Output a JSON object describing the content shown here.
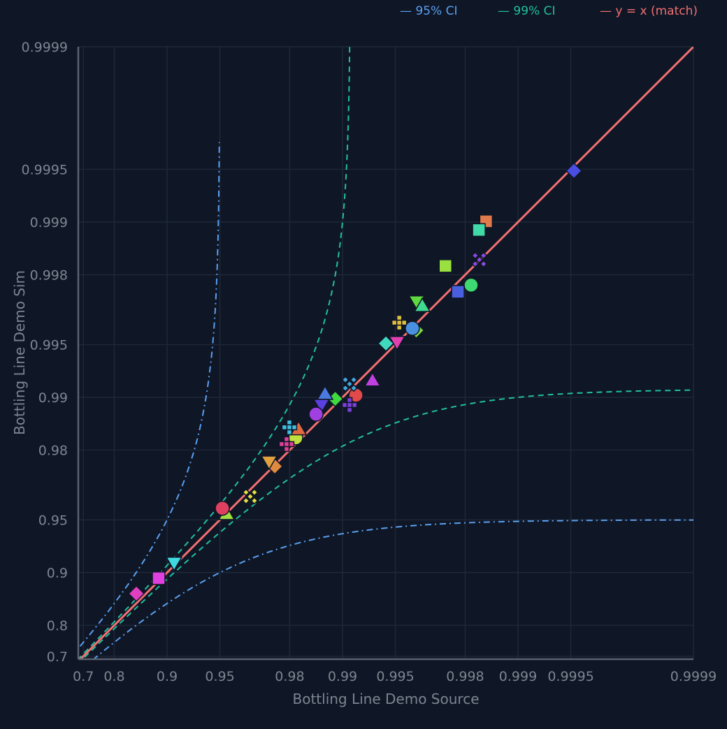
{
  "chart_data": {
    "type": "scatter",
    "scale": "probability (-log10(1-p))",
    "xlabel": "Bottling Line Demo Source",
    "ylabel": "Bottling Line Demo Sim",
    "xlim": [
      0.69,
      0.9999
    ],
    "ylim": [
      0.69,
      0.9999
    ],
    "grid": true,
    "legend_position": "top-right",
    "ticks": [
      "0.7",
      "0.8",
      "0.9",
      "0.95",
      "0.98",
      "0.99",
      "0.995",
      "0.998",
      "0.999",
      "0.9995",
      "0.9999"
    ],
    "legend": [
      {
        "label": "95% CI",
        "color": "#5aa0f0",
        "style": "dash-dot"
      },
      {
        "label": "99% CI",
        "color": "#20c0a0",
        "style": "dashed"
      },
      {
        "label": "y = x (match)",
        "color": "#f07070",
        "style": "solid"
      }
    ],
    "ci_bands": [
      {
        "name": "95% CI",
        "offset": 0.05,
        "color": "#5aa0f0"
      },
      {
        "name": "99% CI",
        "offset": 0.009,
        "color": "#20c0a0"
      }
    ],
    "points": [
      {
        "x": 0.99952,
        "y": 0.99949,
        "shape": "diamond",
        "color": "#4a4ee0"
      },
      {
        "x": 0.99848,
        "y": 0.99901,
        "shape": "square",
        "color": "#e07a4a"
      },
      {
        "x": 0.99833,
        "y": 0.99889,
        "shape": "square",
        "color": "#40d9a8"
      },
      {
        "x": 0.99834,
        "y": 0.99836,
        "shape": "xdiamond",
        "color": "#8a4ae0"
      },
      {
        "x": 0.99741,
        "y": 0.99822,
        "shape": "square",
        "color": "#9ae040"
      },
      {
        "x": 0.99815,
        "y": 0.99771,
        "shape": "circle",
        "color": "#3ed970"
      },
      {
        "x": 0.9978,
        "y": 0.9975,
        "shape": "square",
        "color": "#4a5ee0"
      },
      {
        "x": 0.99622,
        "y": 0.99716,
        "shape": "triangle-down",
        "color": "#5ed940"
      },
      {
        "x": 0.99649,
        "y": 0.99699,
        "shape": "triangle-up",
        "color": "#40d990"
      },
      {
        "x": 0.99525,
        "y": 0.99625,
        "shape": "cross",
        "color": "#e0c040"
      },
      {
        "x": 0.9962,
        "y": 0.99585,
        "shape": "diamond",
        "color": "#7ad940"
      },
      {
        "x": 0.996,
        "y": 0.99596,
        "shape": "circle",
        "color": "#4a90e0"
      },
      {
        "x": 0.99434,
        "y": 0.99507,
        "shape": "diamond",
        "color": "#40d9c0"
      },
      {
        "x": 0.99511,
        "y": 0.99516,
        "shape": "triangle-down",
        "color": "#e040b0"
      },
      {
        "x": 0.99325,
        "y": 0.99199,
        "shape": "triangle-up",
        "color": "#c040e0"
      },
      {
        "x": 0.99161,
        "y": 0.99027,
        "shape": "circle",
        "color": "#e04a4a"
      },
      {
        "x": 0.99088,
        "y": 0.99161,
        "shape": "xdiamond",
        "color": "#40a8e0"
      },
      {
        "x": 0.99088,
        "y": 0.98894,
        "shape": "cross",
        "color": "#7a40d9"
      },
      {
        "x": 0.989,
        "y": 0.9898,
        "shape": "diamond",
        "color": "#40d940"
      },
      {
        "x": 0.98742,
        "y": 0.99045,
        "shape": "triangle-up",
        "color": "#4a7ae0"
      },
      {
        "x": 0.98682,
        "y": 0.98894,
        "shape": "triangle-down",
        "color": "#5a40e0"
      },
      {
        "x": 0.98584,
        "y": 0.98752,
        "shape": "circle",
        "color": "#a040e0"
      },
      {
        "x": 0.98151,
        "y": 0.98298,
        "shape": "circle",
        "color": "#c0e040"
      },
      {
        "x": 0.9822,
        "y": 0.9848,
        "shape": "triangle-up",
        "color": "#e06a40"
      },
      {
        "x": 0.97991,
        "y": 0.98517,
        "shape": "cross",
        "color": "#40c0e0"
      },
      {
        "x": 0.97916,
        "y": 0.98151,
        "shape": "cross",
        "color": "#e0409a"
      },
      {
        "x": 0.97567,
        "y": 0.97523,
        "shape": "diamond",
        "color": "#e08a40"
      },
      {
        "x": 0.9738,
        "y": 0.97673,
        "shape": "triangle-down",
        "color": "#e0a040"
      },
      {
        "x": 0.96642,
        "y": 0.96319,
        "shape": "xdiamond",
        "color": "#e0e040"
      },
      {
        "x": 0.95418,
        "y": 0.95374,
        "shape": "triangle-up",
        "color": "#a0e040"
      },
      {
        "x": 0.95158,
        "y": 0.95704,
        "shape": "circle",
        "color": "#e04060"
      },
      {
        "x": 0.9088,
        "y": 0.91208,
        "shape": "triangle-down",
        "color": "#40d9e0"
      },
      {
        "x": 0.88833,
        "y": 0.89234,
        "shape": "square",
        "color": "#e040e0"
      },
      {
        "x": 0.85037,
        "y": 0.86817,
        "shape": "diamond",
        "color": "#e040c0"
      }
    ]
  }
}
